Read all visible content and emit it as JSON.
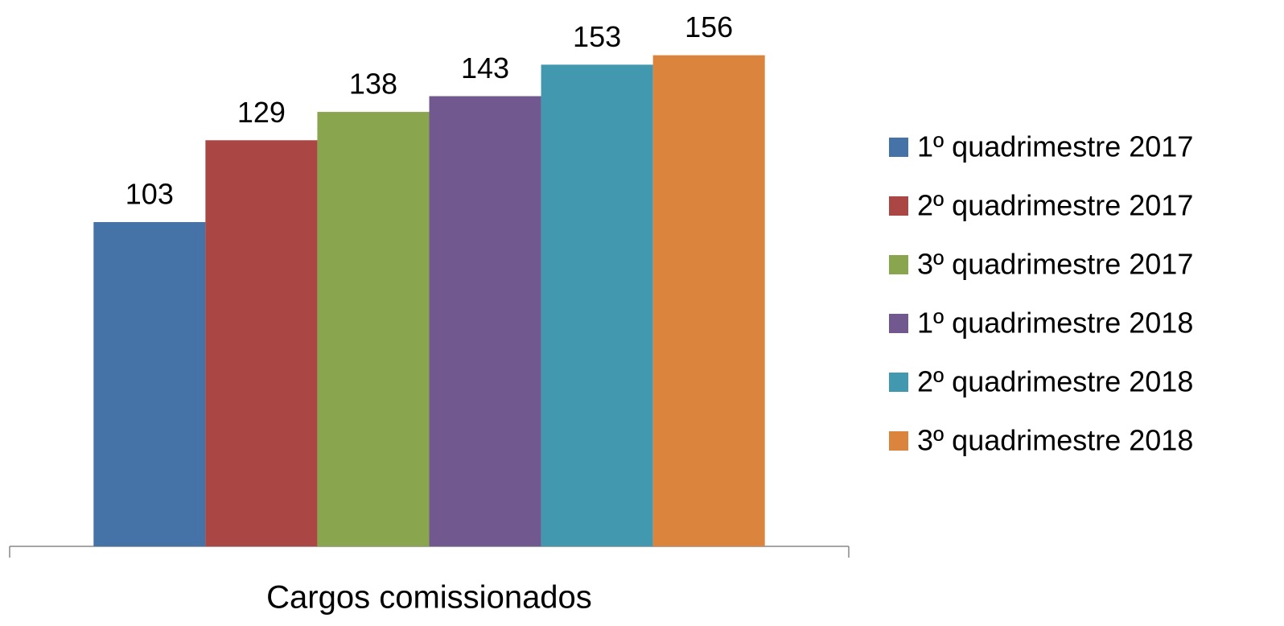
{
  "chart_data": {
    "type": "bar",
    "categories": [
      "Cargos comissionados"
    ],
    "series": [
      {
        "name": "1º quadrimestre 2017",
        "color": "#4572a7",
        "values": [
          103
        ]
      },
      {
        "name": "2º quadrimestre 2017",
        "color": "#aa4643",
        "values": [
          129
        ]
      },
      {
        "name": "3º quadrimestre 2017",
        "color": "#89a54e",
        "values": [
          138
        ]
      },
      {
        "name": "1º quadrimestre 2018",
        "color": "#71588f",
        "values": [
          143
        ]
      },
      {
        "name": "2º quadrimestre 2018",
        "color": "#4198af",
        "values": [
          153
        ]
      },
      {
        "name": "3º quadrimestre 2018",
        "color": "#db843d",
        "values": [
          156
        ]
      }
    ],
    "ylim": [
      0,
      160
    ],
    "legend": "right"
  }
}
